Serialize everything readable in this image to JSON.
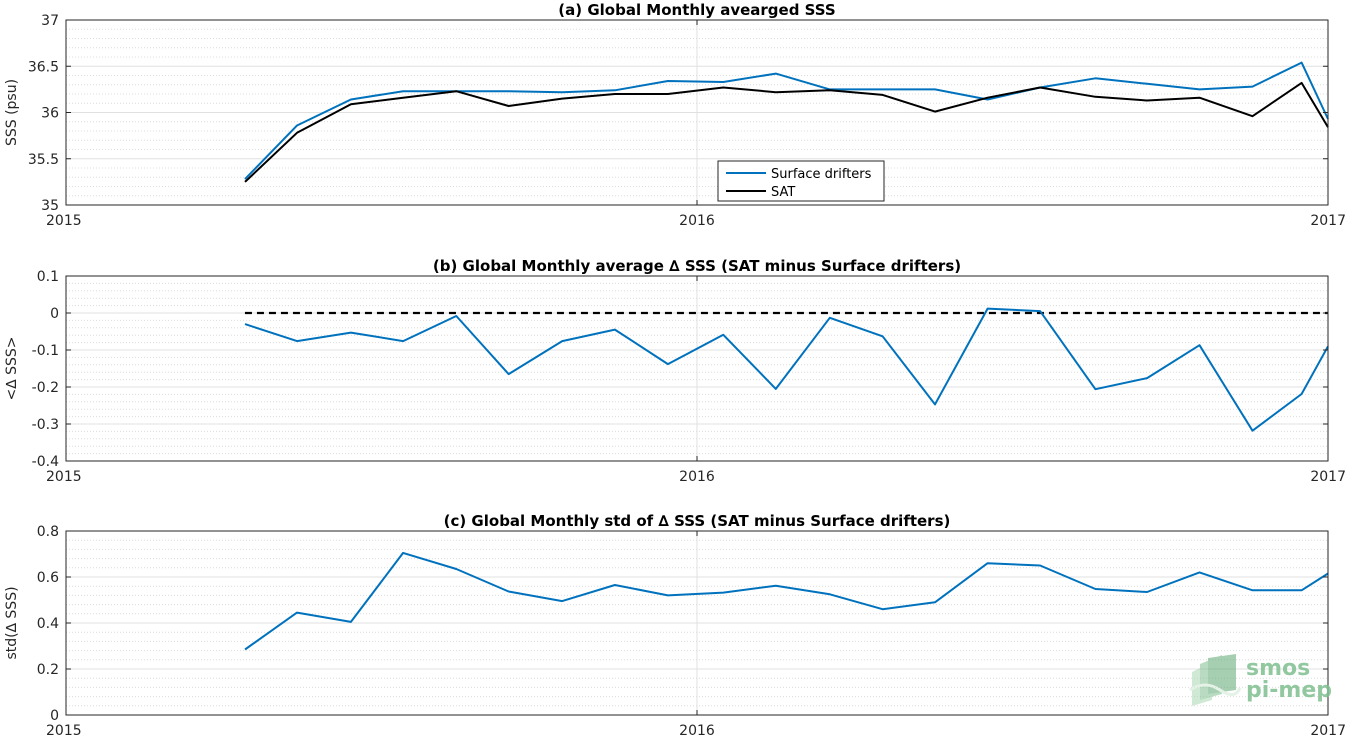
{
  "chart_data": [
    {
      "type": "line",
      "title": "(a) Global Monthly avearged SSS",
      "xlabel": "",
      "ylabel": "SSS (psu)",
      "xlim": [
        2015.0,
        2017.0
      ],
      "ylim": [
        35,
        37
      ],
      "x_ticks": [
        2015,
        2016,
        2017
      ],
      "x_tick_labels": [
        "2015",
        "2016",
        "2017"
      ],
      "y_ticks": [
        35,
        35.5,
        36,
        36.5,
        37
      ],
      "y_tick_labels": [
        "35",
        "35.5",
        "36",
        "36.5",
        "37"
      ],
      "grid": true,
      "legend_position": "bottom-center",
      "x": [
        2015.2836,
        2015.3661,
        2015.4515,
        2015.5342,
        2015.6186,
        2015.7014,
        2015.7863,
        2015.8699,
        2015.9539,
        2016.0417,
        2016.1249,
        2016.2104,
        2016.2941,
        2016.3772,
        2016.4605,
        2016.5437,
        2016.6314,
        2016.7133,
        2016.7964,
        2016.8804,
        2016.9582,
        2017.0
      ],
      "series": [
        {
          "name": "Surface drifters",
          "color": "#0072BD",
          "values": [
            35.28,
            35.86,
            36.14,
            36.23,
            36.23,
            36.23,
            36.22,
            36.24,
            36.34,
            36.33,
            36.42,
            36.25,
            36.25,
            36.25,
            36.14,
            36.27,
            36.37,
            36.31,
            36.25,
            36.28,
            36.54,
            35.93
          ]
        },
        {
          "name": "SAT",
          "color": "#000000",
          "values": [
            35.25,
            35.78,
            36.09,
            36.16,
            36.23,
            36.07,
            36.15,
            36.2,
            36.2,
            36.27,
            36.22,
            36.24,
            36.19,
            36.01,
            36.16,
            36.27,
            36.17,
            36.13,
            36.16,
            35.96,
            36.32,
            35.84
          ]
        }
      ]
    },
    {
      "type": "line",
      "title": "(b) Global Monthly average ∆ SSS (SAT minus Surface drifters)",
      "xlabel": "",
      "ylabel": "<∆ SSS>",
      "xlim": [
        2015.0,
        2017.0
      ],
      "ylim": [
        -0.4,
        0.1
      ],
      "x_ticks": [
        2015,
        2016,
        2017
      ],
      "x_tick_labels": [
        "2015",
        "2016",
        "2017"
      ],
      "y_ticks": [
        -0.4,
        -0.3,
        -0.2,
        -0.1,
        0,
        0.1
      ],
      "y_tick_labels": [
        "-0.4",
        "-0.3",
        "-0.2",
        "-0.1",
        "0",
        "0.1"
      ],
      "grid": true,
      "reference_line": {
        "y": 0,
        "style": "dashed",
        "color": "#000000",
        "x_start": 2015.2836,
        "x_end": 2017.0
      },
      "x": [
        2015.2836,
        2015.3661,
        2015.4515,
        2015.5342,
        2015.6186,
        2015.7014,
        2015.7863,
        2015.8699,
        2015.9539,
        2016.0417,
        2016.1249,
        2016.2104,
        2016.2941,
        2016.3772,
        2016.4605,
        2016.5437,
        2016.6314,
        2016.7133,
        2016.7964,
        2016.8804,
        2016.9582,
        2017.0
      ],
      "series": [
        {
          "name": "",
          "color": "#0072BD",
          "values": [
            -0.03,
            -0.076,
            -0.053,
            -0.076,
            -0.008,
            -0.165,
            -0.076,
            -0.045,
            -0.138,
            -0.059,
            -0.205,
            -0.013,
            -0.063,
            -0.247,
            0.012,
            0.005,
            -0.206,
            -0.176,
            -0.087,
            -0.318,
            -0.219,
            -0.09
          ]
        }
      ]
    },
    {
      "type": "line",
      "title": "(c) Global Monthly std of ∆ SSS (SAT minus Surface drifters)",
      "xlabel": "",
      "ylabel": "std(∆ SSS)",
      "xlim": [
        2015.0,
        2017.0
      ],
      "ylim": [
        0,
        0.8
      ],
      "x_ticks": [
        2015,
        2016,
        2017
      ],
      "x_tick_labels": [
        "2015",
        "2016",
        "2017"
      ],
      "y_ticks": [
        0,
        0.2,
        0.4,
        0.6,
        0.8
      ],
      "y_tick_labels": [
        "0",
        "0.2",
        "0.4",
        "0.6",
        "0.8"
      ],
      "grid": true,
      "x": [
        2015.2836,
        2015.3661,
        2015.4515,
        2015.5342,
        2015.6186,
        2015.7014,
        2015.7863,
        2015.8699,
        2015.9539,
        2016.0417,
        2016.1249,
        2016.2104,
        2016.2941,
        2016.3772,
        2016.4605,
        2016.5437,
        2016.6314,
        2016.7133,
        2016.7964,
        2016.8804,
        2016.9582,
        2017.0
      ],
      "series": [
        {
          "name": "",
          "color": "#0072BD",
          "values": [
            0.285,
            0.445,
            0.405,
            0.705,
            0.635,
            0.537,
            0.495,
            0.565,
            0.52,
            0.532,
            0.562,
            0.525,
            0.46,
            0.49,
            0.66,
            0.65,
            0.548,
            0.535,
            0.62,
            0.542,
            0.542,
            0.615
          ]
        }
      ]
    }
  ],
  "logo": {
    "line1": "smos",
    "line2": "pi-mep",
    "color": "#7fbf8f"
  }
}
